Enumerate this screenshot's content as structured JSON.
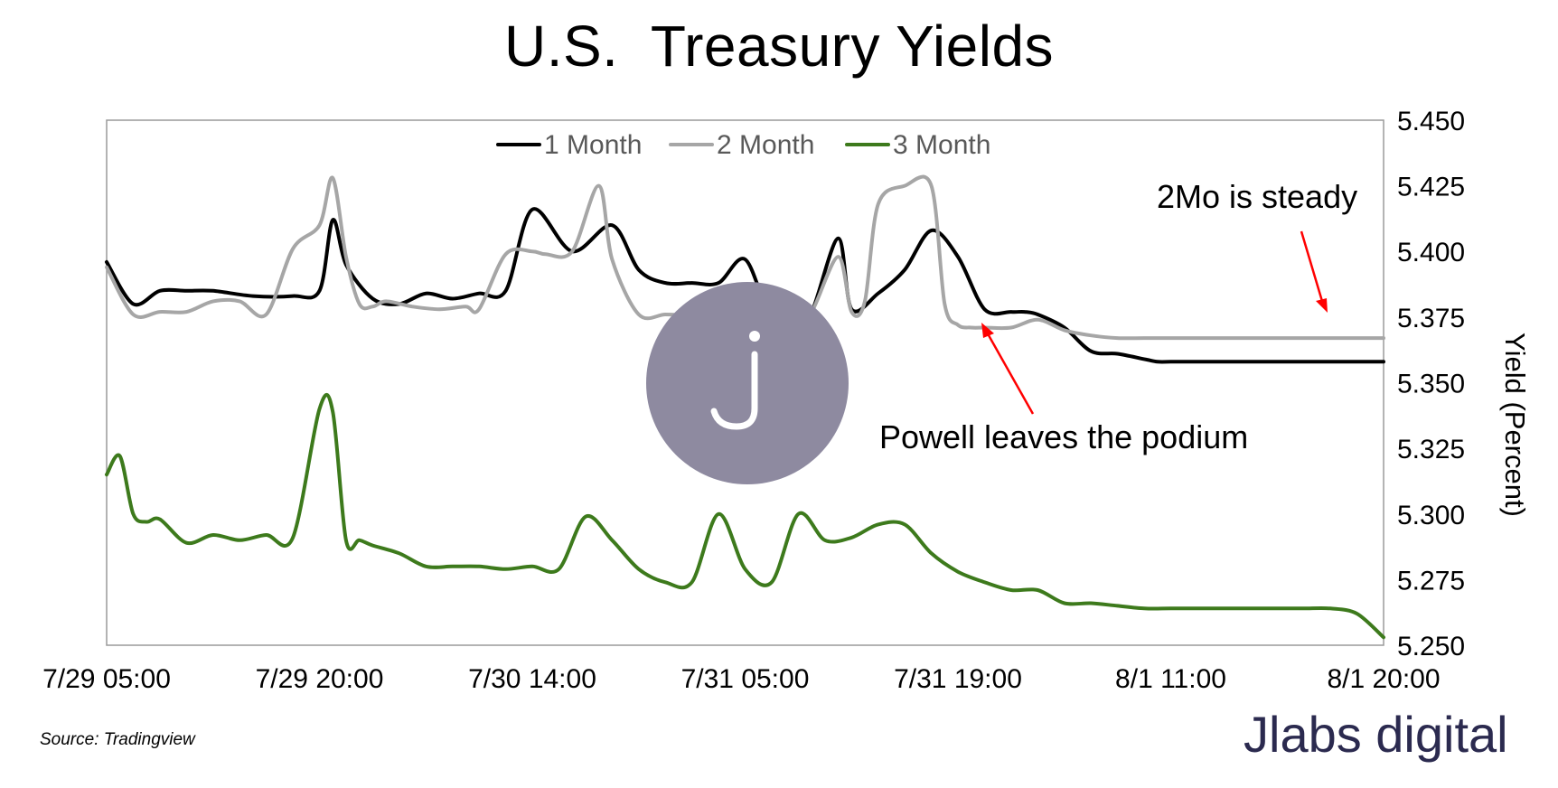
{
  "title": "U.S.  Treasury Yields",
  "source": "Source: Tradingview",
  "brand": "Jlabs digital",
  "watermark_glyph": "J",
  "colors": {
    "one_month": "#000000",
    "two_month": "#a6a6a6",
    "three_month": "#3d7a1c",
    "annotation_arrow": "#ff0000",
    "watermark": "#8e8aa0",
    "brand": "#2b2a4f"
  },
  "annotations": {
    "steady": "2Mo is steady",
    "powell": "Powell leaves the podium"
  },
  "chart_data": {
    "type": "line",
    "title": "U.S.  Treasury Yields",
    "ylabel": "Yield (Percent)",
    "xlabel": "",
    "ylim": [
      5.25,
      5.45
    ],
    "y_ticks": [
      "5.450",
      "5.425",
      "5.400",
      "5.375",
      "5.350",
      "5.325",
      "5.300",
      "5.275",
      "5.250"
    ],
    "x_tick_labels": [
      "7/29 05:00",
      "7/29 20:00",
      "7/30 14:00",
      "7/31 05:00",
      "7/31 19:00",
      "8/1 11:00",
      "8/1 20:00"
    ],
    "legend_position": "top-center",
    "grid": false,
    "n_points": 97,
    "series": [
      {
        "name": "1 Month",
        "color": "#000000",
        "x": [
          0,
          2,
          4,
          6,
          8,
          11,
          14,
          16,
          17,
          18,
          20,
          22,
          24,
          26,
          28,
          30,
          32,
          35,
          38,
          40,
          42,
          44,
          46,
          48,
          50,
          52,
          53,
          55,
          56,
          58,
          60,
          62,
          64,
          66,
          68,
          69,
          70,
          72,
          74,
          76,
          78,
          79,
          80,
          81,
          83,
          85,
          87,
          89,
          91,
          93,
          94,
          96
        ],
        "values": [
          5.396,
          5.38,
          5.385,
          5.385,
          5.385,
          5.383,
          5.383,
          5.385,
          5.412,
          5.395,
          5.382,
          5.38,
          5.384,
          5.382,
          5.384,
          5.385,
          5.416,
          5.4,
          5.41,
          5.393,
          5.388,
          5.388,
          5.388,
          5.397,
          5.375,
          5.379,
          5.377,
          5.405,
          5.378,
          5.384,
          5.393,
          5.408,
          5.398,
          5.378,
          5.377,
          5.377,
          5.376,
          5.371,
          5.362,
          5.361,
          5.359,
          5.358,
          5.358,
          5.358,
          5.358,
          5.358,
          5.358,
          5.358,
          5.358,
          5.358,
          5.358,
          5.358
        ]
      },
      {
        "name": "2 Month",
        "color": "#a6a6a6",
        "x": [
          0,
          2,
          4,
          6,
          8,
          10,
          12,
          14,
          16,
          17,
          18,
          19,
          20,
          21,
          23,
          25,
          27,
          28,
          30,
          32,
          33,
          35,
          37,
          38,
          40,
          42,
          44,
          46,
          48,
          50,
          52,
          53,
          55,
          56,
          57,
          58,
          60,
          62,
          63,
          64,
          65,
          66,
          68,
          70,
          72,
          74,
          76,
          78,
          80,
          82,
          85,
          88,
          91,
          94,
          96
        ],
        "values": [
          5.394,
          5.376,
          5.377,
          5.377,
          5.381,
          5.381,
          5.376,
          5.401,
          5.41,
          5.428,
          5.398,
          5.38,
          5.379,
          5.381,
          5.379,
          5.378,
          5.379,
          5.378,
          5.399,
          5.4,
          5.399,
          5.4,
          5.425,
          5.397,
          5.376,
          5.376,
          5.376,
          5.378,
          5.385,
          5.376,
          5.377,
          5.377,
          5.398,
          5.377,
          5.381,
          5.418,
          5.425,
          5.425,
          5.38,
          5.372,
          5.371,
          5.371,
          5.371,
          5.374,
          5.37,
          5.368,
          5.367,
          5.367,
          5.367,
          5.367,
          5.367,
          5.367,
          5.367,
          5.367,
          5.367
        ]
      },
      {
        "name": "3 Month",
        "color": "#3d7a1c",
        "x": [
          0,
          1,
          2,
          3,
          4,
          6,
          8,
          10,
          12,
          14,
          16,
          17,
          18,
          19,
          20,
          22,
          24,
          26,
          28,
          30,
          32,
          34,
          36,
          38,
          40,
          42,
          44,
          46,
          48,
          50,
          52,
          54,
          56,
          58,
          60,
          62,
          64,
          66,
          68,
          70,
          72,
          74,
          76,
          78,
          80,
          82,
          84,
          86,
          88,
          90,
          92,
          94,
          96
        ],
        "values": [
          5.315,
          5.322,
          5.3,
          5.297,
          5.298,
          5.289,
          5.292,
          5.29,
          5.292,
          5.291,
          5.34,
          5.339,
          5.29,
          5.29,
          5.288,
          5.285,
          5.28,
          5.28,
          5.28,
          5.279,
          5.28,
          5.279,
          5.299,
          5.29,
          5.279,
          5.274,
          5.274,
          5.3,
          5.279,
          5.274,
          5.3,
          5.29,
          5.291,
          5.296,
          5.296,
          5.285,
          5.278,
          5.274,
          5.271,
          5.271,
          5.266,
          5.266,
          5.265,
          5.264,
          5.264,
          5.264,
          5.264,
          5.264,
          5.264,
          5.264,
          5.264,
          5.262,
          5.253
        ]
      }
    ]
  }
}
